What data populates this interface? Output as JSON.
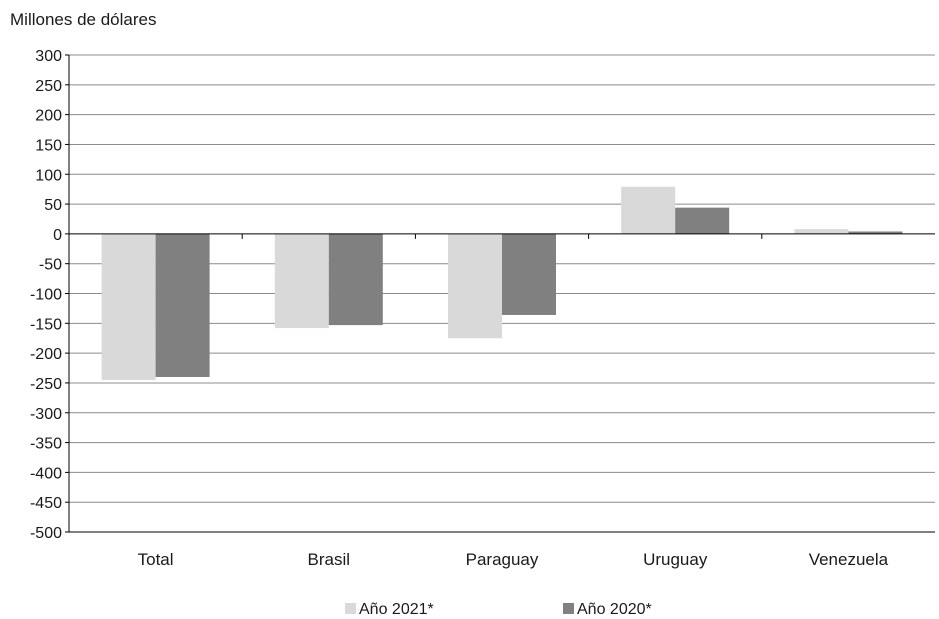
{
  "chart_data": {
    "type": "bar",
    "title": "",
    "ylabel": "Millones de dólares",
    "xlabel": "",
    "categories": [
      "Total",
      "Brasil",
      "Paraguay",
      "Uruguay",
      "Venezuela"
    ],
    "series": [
      {
        "name": "Año 2021*",
        "color": "#d9d9d9",
        "values": [
          -245,
          -158,
          -175,
          79,
          8
        ]
      },
      {
        "name": "Año 2020*",
        "color": "#808080",
        "values": [
          -240,
          -153,
          -136,
          44,
          4
        ]
      }
    ],
    "ylim": [
      -500,
      300
    ],
    "yticks": [
      "300",
      "250",
      "200",
      "150",
      "100",
      "50",
      "0",
      "-50",
      "-100",
      "-150",
      "-200",
      "-250",
      "-300",
      "-350",
      "-400",
      "-450",
      "-500"
    ],
    "grid": true,
    "legend": "bottom-center"
  }
}
